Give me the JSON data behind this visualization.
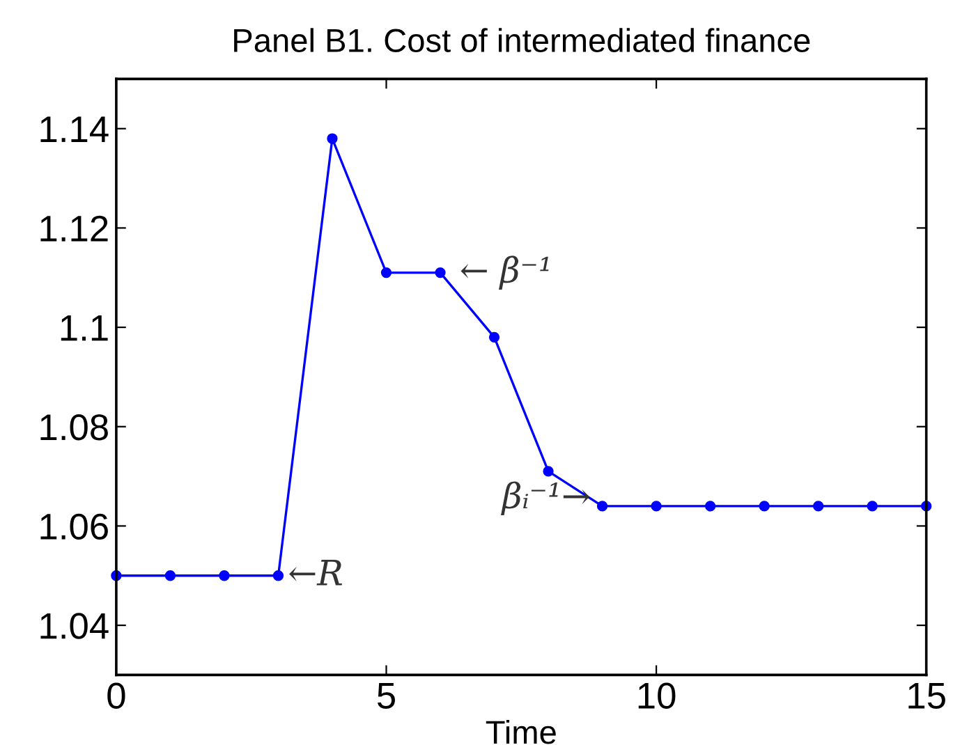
{
  "chart_data": {
    "type": "line",
    "title": "Panel B1. Cost of intermediated finance",
    "xlabel": "Time",
    "x": [
      0,
      1,
      2,
      3,
      4,
      5,
      6,
      7,
      8,
      9,
      10,
      11,
      12,
      13,
      14,
      15
    ],
    "series": [
      {
        "color": "#0000ff",
        "values": [
          1.05,
          1.05,
          1.05,
          1.05,
          1.138,
          1.111,
          1.111,
          1.098,
          1.071,
          1.064,
          1.064,
          1.064,
          1.064,
          1.064,
          1.064,
          1.064
        ]
      }
    ],
    "xlim": [
      0,
      15
    ],
    "xticks": [
      0,
      5,
      10,
      15
    ],
    "ylim": [
      1.03,
      1.15
    ],
    "yticks": [
      1.04,
      1.06,
      1.08,
      1.1,
      1.12,
      1.14
    ],
    "marker": "circle",
    "line_style": "solid",
    "grid": false,
    "legend": false,
    "annotations": [
      {
        "text": "←R",
        "x": 3,
        "y": 1.05
      },
      {
        "text": "← β⁻¹",
        "x": 6,
        "y": 1.111
      },
      {
        "text": "βᵢ⁻¹→",
        "x": 9,
        "y": 1.064
      }
    ]
  }
}
